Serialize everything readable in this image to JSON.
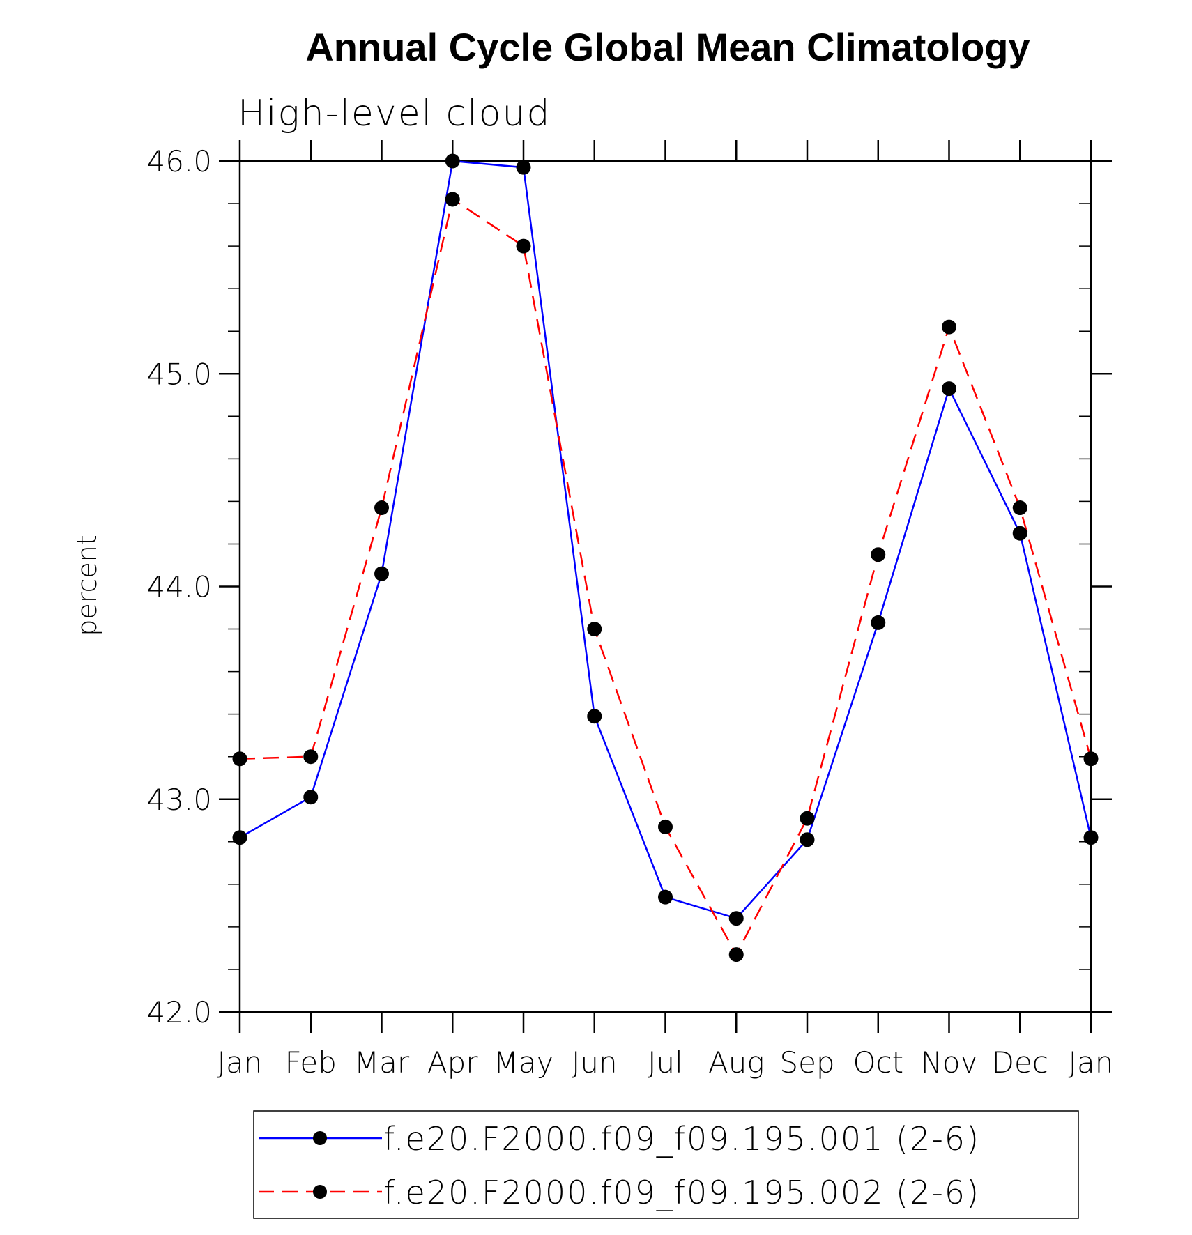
{
  "chart_data": {
    "type": "line",
    "title": "Annual Cycle Global Mean Climatology",
    "subtitle": "High-level cloud",
    "xlabel": "",
    "ylabel": "percent",
    "categories": [
      "Jan",
      "Feb",
      "Mar",
      "Apr",
      "May",
      "Jun",
      "Jul",
      "Aug",
      "Sep",
      "Oct",
      "Nov",
      "Dec",
      "Jan"
    ],
    "ylim": [
      42.0,
      46.0
    ],
    "yticks": [
      "42.0",
      "43.0",
      "44.0",
      "45.0",
      "46.0"
    ],
    "grid": false,
    "legend_position": "bottom",
    "series": [
      {
        "name": "f.e20.F2000.f09_f09.195.001 (2-6)",
        "color": "#0000ff",
        "dash": "solid",
        "marker": "filled-circle",
        "values": [
          42.82,
          43.01,
          44.06,
          46.0,
          45.97,
          43.39,
          42.54,
          42.44,
          42.81,
          43.83,
          44.93,
          44.25,
          42.82
        ]
      },
      {
        "name": "f.e20.F2000.f09_f09.195.002 (2-6)",
        "color": "#ff0000",
        "dash": "dashed",
        "marker": "filled-circle",
        "values": [
          43.19,
          43.2,
          44.37,
          45.82,
          45.6,
          43.8,
          42.87,
          42.27,
          42.91,
          44.15,
          45.22,
          44.37,
          43.19
        ]
      }
    ]
  }
}
